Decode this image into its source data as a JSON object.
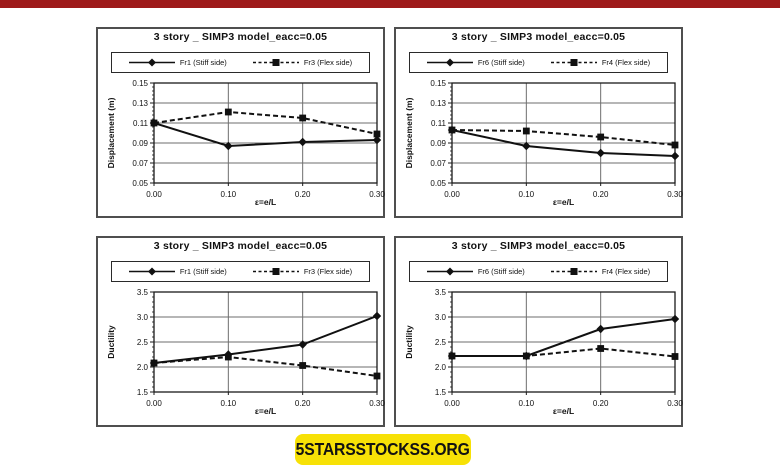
{
  "top_banner": {
    "color": "#9e1a1a"
  },
  "watermark": {
    "text": "5STARSSTOCKSS.ORG",
    "background": "#f7e106",
    "text_color": "#121212"
  },
  "chart_data": [
    {
      "id": "top-left",
      "type": "line",
      "title": "3 story _ SIMP3 model_eacc=0.05",
      "xlabel": "ε=e/L",
      "ylabel": "Displacement (m)",
      "xlim": [
        0,
        0.3
      ],
      "ylim": [
        0.05,
        0.15
      ],
      "x": [
        0.0,
        0.1,
        0.2,
        0.3
      ],
      "xticks": [
        0.0,
        0.1,
        0.2,
        0.3
      ],
      "xtick_labels": [
        "0.00",
        "0.10",
        "0.20",
        "0.30"
      ],
      "yticks": [
        0.05,
        0.07,
        0.09,
        0.11,
        0.13,
        0.15
      ],
      "ytick_labels": [
        "0.05",
        "0.07",
        "0.09",
        "0.11",
        "0.13",
        "0.15"
      ],
      "grid": true,
      "legend_position": "top",
      "series": [
        {
          "name": "Fr1 (Stiff side)",
          "style": "solid",
          "marker": "diamond",
          "values": [
            0.11,
            0.087,
            0.091,
            0.093
          ]
        },
        {
          "name": "Fr3 (Flex side)",
          "style": "dashed",
          "marker": "square",
          "values": [
            0.11,
            0.121,
            0.115,
            0.099
          ]
        }
      ]
    },
    {
      "id": "top-right",
      "type": "line",
      "title": "3 story _ SIMP3 model_eacc=0.05",
      "xlabel": "ε=e/L",
      "ylabel": "Displacement (m)",
      "xlim": [
        0,
        0.3
      ],
      "ylim": [
        0.05,
        0.15
      ],
      "x": [
        0.0,
        0.1,
        0.2,
        0.3
      ],
      "xticks": [
        0.0,
        0.1,
        0.2,
        0.3
      ],
      "xtick_labels": [
        "0.00",
        "0.10",
        "0.20",
        "0.30"
      ],
      "yticks": [
        0.05,
        0.07,
        0.09,
        0.11,
        0.13,
        0.15
      ],
      "ytick_labels": [
        "0.05",
        "0.07",
        "0.09",
        "0.11",
        "0.13",
        "0.15"
      ],
      "grid": true,
      "legend_position": "top",
      "series": [
        {
          "name": "Fr6 (Stiff side)",
          "style": "solid",
          "marker": "diamond",
          "values": [
            0.103,
            0.087,
            0.08,
            0.077
          ]
        },
        {
          "name": "Fr4 (Flex side)",
          "style": "dashed",
          "marker": "square",
          "values": [
            0.103,
            0.102,
            0.096,
            0.088
          ]
        }
      ]
    },
    {
      "id": "bottom-left",
      "type": "line",
      "title": "3 story _ SIMP3 model_eacc=0.05",
      "xlabel": "ε=e/L",
      "ylabel": "Ductility",
      "xlim": [
        0,
        0.3
      ],
      "ylim": [
        1.5,
        3.5
      ],
      "x": [
        0.0,
        0.1,
        0.2,
        0.3
      ],
      "xticks": [
        0.0,
        0.1,
        0.2,
        0.3
      ],
      "xtick_labels": [
        "0.00",
        "0.10",
        "0.20",
        "0.30"
      ],
      "yticks": [
        1.5,
        2.0,
        2.5,
        3.0,
        3.5
      ],
      "ytick_labels": [
        "1.5",
        "2.0",
        "2.5",
        "3.0",
        "3.5"
      ],
      "grid": true,
      "legend_position": "top",
      "series": [
        {
          "name": "Fr1 (Stiff side)",
          "style": "solid",
          "marker": "diamond",
          "values": [
            2.08,
            2.25,
            2.45,
            3.02
          ]
        },
        {
          "name": "Fr3 (Flex side)",
          "style": "dashed",
          "marker": "square",
          "values": [
            2.08,
            2.2,
            2.03,
            1.82
          ]
        }
      ]
    },
    {
      "id": "bottom-right",
      "type": "line",
      "title": "3 story _ SIMP3 model_eacc=0.05",
      "xlabel": "ε=e/L",
      "ylabel": "Ductility",
      "xlim": [
        0,
        0.3
      ],
      "ylim": [
        1.5,
        3.5
      ],
      "x": [
        0.0,
        0.1,
        0.2,
        0.3
      ],
      "xticks": [
        0.0,
        0.1,
        0.2,
        0.3
      ],
      "xtick_labels": [
        "0.00",
        "0.10",
        "0.20",
        "0.30"
      ],
      "yticks": [
        1.5,
        2.0,
        2.5,
        3.0,
        3.5
      ],
      "ytick_labels": [
        "1.5",
        "2.0",
        "2.5",
        "3.0",
        "3.5"
      ],
      "grid": true,
      "legend_position": "top",
      "series": [
        {
          "name": "Fr6 (Stiff side)",
          "style": "solid",
          "marker": "diamond",
          "values": [
            2.22,
            2.22,
            2.76,
            2.96
          ]
        },
        {
          "name": "Fr4 (Flex side)",
          "style": "dashed",
          "marker": "square",
          "values": [
            2.22,
            2.22,
            2.37,
            2.21
          ]
        }
      ]
    }
  ]
}
